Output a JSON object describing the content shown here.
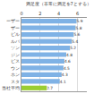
{
  "chart_data": {
    "type": "bar",
    "orientation": "horizontal",
    "title": "満足度（非常に満足を7とする）",
    "categories": [
      "ーザー",
      "ザー",
      "ビル",
      "ルバ",
      "ソン",
      "ジン",
      "ビス",
      "ウン",
      "ホン",
      "スタ",
      "当社平均"
    ],
    "values": [
      5.9,
      5.8,
      5.6,
      5.4,
      5.2,
      4.8,
      4.6,
      4.5,
      4.3,
      4.1,
      2.7
    ],
    "colors": [
      "#7fb2e5",
      "#7fb2e5",
      "#7fb2e5",
      "#7fb2e5",
      "#7fb2e5",
      "#7fb2e5",
      "#7fb2e5",
      "#7fb2e5",
      "#7fb2e5",
      "#7fb2e5",
      "#9acd32"
    ],
    "xlim": [
      0,
      7
    ],
    "xticks": [
      0,
      2,
      4,
      6
    ],
    "grid": true,
    "data_labels": true
  }
}
